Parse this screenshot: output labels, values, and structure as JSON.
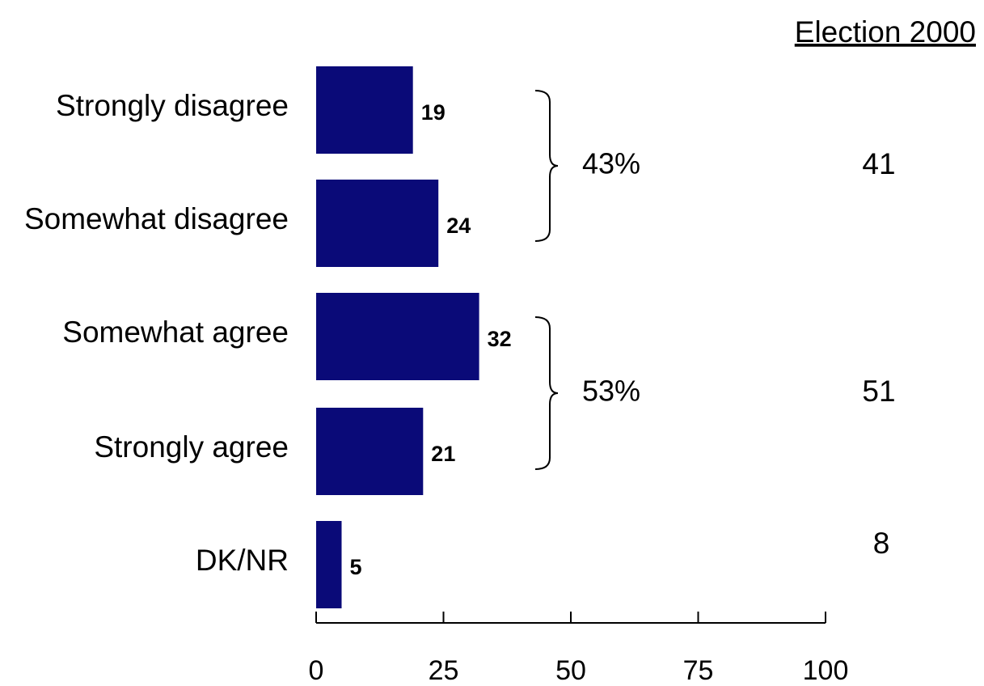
{
  "chart_data": {
    "type": "bar",
    "orientation": "horizontal",
    "categories": [
      "Strongly disagree",
      "Somewhat disagree",
      "Somewhat agree",
      "Strongly agree",
      "DK/NR"
    ],
    "values": [
      19,
      24,
      32,
      21,
      5
    ],
    "xlim": [
      0,
      100
    ],
    "xticks": [
      0,
      25,
      50,
      75,
      100
    ],
    "xtick_labels": [
      "0",
      "25",
      "50",
      "75",
      "100"
    ],
    "bar_color": "#0a0a78",
    "grid": false,
    "groups": [
      {
        "label": "43%",
        "from": 0,
        "to": 1,
        "comparison": "41"
      },
      {
        "label": "53%",
        "from": 2,
        "to": 3,
        "comparison": "51"
      }
    ],
    "comparison_header": "Election 2000",
    "ungrouped_comparisons": [
      {
        "category_index": 4,
        "value": "8"
      }
    ]
  }
}
